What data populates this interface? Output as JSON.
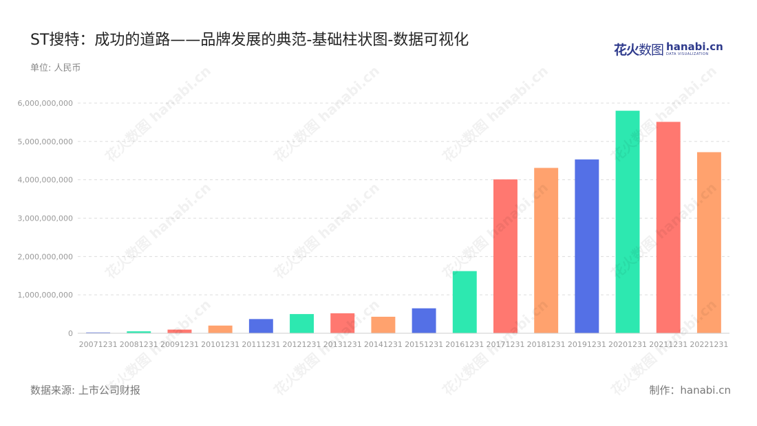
{
  "title": "ST搜特：成功的道路——品牌发展的典范-基础柱状图-数据可视化",
  "unit_label": "单位: 人民币",
  "source": "数据来源: 上市公司财报",
  "maker": "制作：hanabi.cn",
  "logo": {
    "cn_bold": "花火",
    "cn_light": "数图",
    "site": "hanabi.cn",
    "sub": "DATA VISUALIZATION"
  },
  "watermark": "花火数图 hanabi.cn",
  "chart_data": {
    "type": "bar",
    "title": "ST搜特：成功的道路——品牌发展的典范-基础柱状图-数据可视化",
    "categories": [
      "20071231",
      "20081231",
      "20091231",
      "20101231",
      "20111231",
      "20121231",
      "20131231",
      "20141231",
      "20151231",
      "20161231",
      "20171231",
      "20181231",
      "20191231",
      "20201231",
      "20211231",
      "20221231"
    ],
    "values": [
      20000000,
      50000000,
      95000000,
      200000000,
      370000000,
      500000000,
      520000000,
      430000000,
      650000000,
      1620000000,
      4010000000,
      4310000000,
      4530000000,
      5800000000,
      5510000000,
      4720000000
    ],
    "bar_colors": [
      "#5470e6",
      "#2de8b0",
      "#ff7870",
      "#ffa26e",
      "#5470e6",
      "#2de8b0",
      "#ff7870",
      "#ffa26e",
      "#5470e6",
      "#2de8b0",
      "#ff7870",
      "#ffa26e",
      "#5470e6",
      "#2de8b0",
      "#ff7870",
      "#ffa26e"
    ],
    "ylim": [
      0,
      6000000000
    ],
    "yticks": [
      0,
      1000000000,
      2000000000,
      3000000000,
      4000000000,
      5000000000,
      6000000000
    ],
    "ytick_labels": [
      "0",
      "1,000,000,000",
      "2,000,000,000",
      "3,000,000,000",
      "4,000,000,000",
      "5,000,000,000",
      "6,000,000,000"
    ],
    "grid": true,
    "xlabel": "",
    "ylabel": ""
  }
}
